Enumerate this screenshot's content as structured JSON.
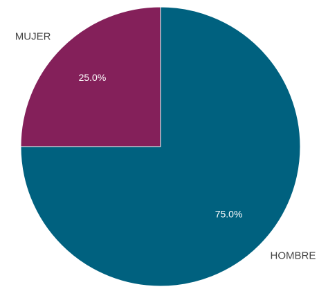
{
  "chart_data": {
    "type": "pie",
    "slices": [
      {
        "label": "HOMBRE",
        "value": 75.0,
        "percent_label": "75.0%",
        "color": "#00617f"
      },
      {
        "label": "MUJER",
        "value": 25.0,
        "percent_label": "25.0%",
        "color": "#84205a"
      }
    ],
    "start_angle_deg": 0,
    "direction": "clockwise",
    "slice_border_color": "#ffffff"
  }
}
